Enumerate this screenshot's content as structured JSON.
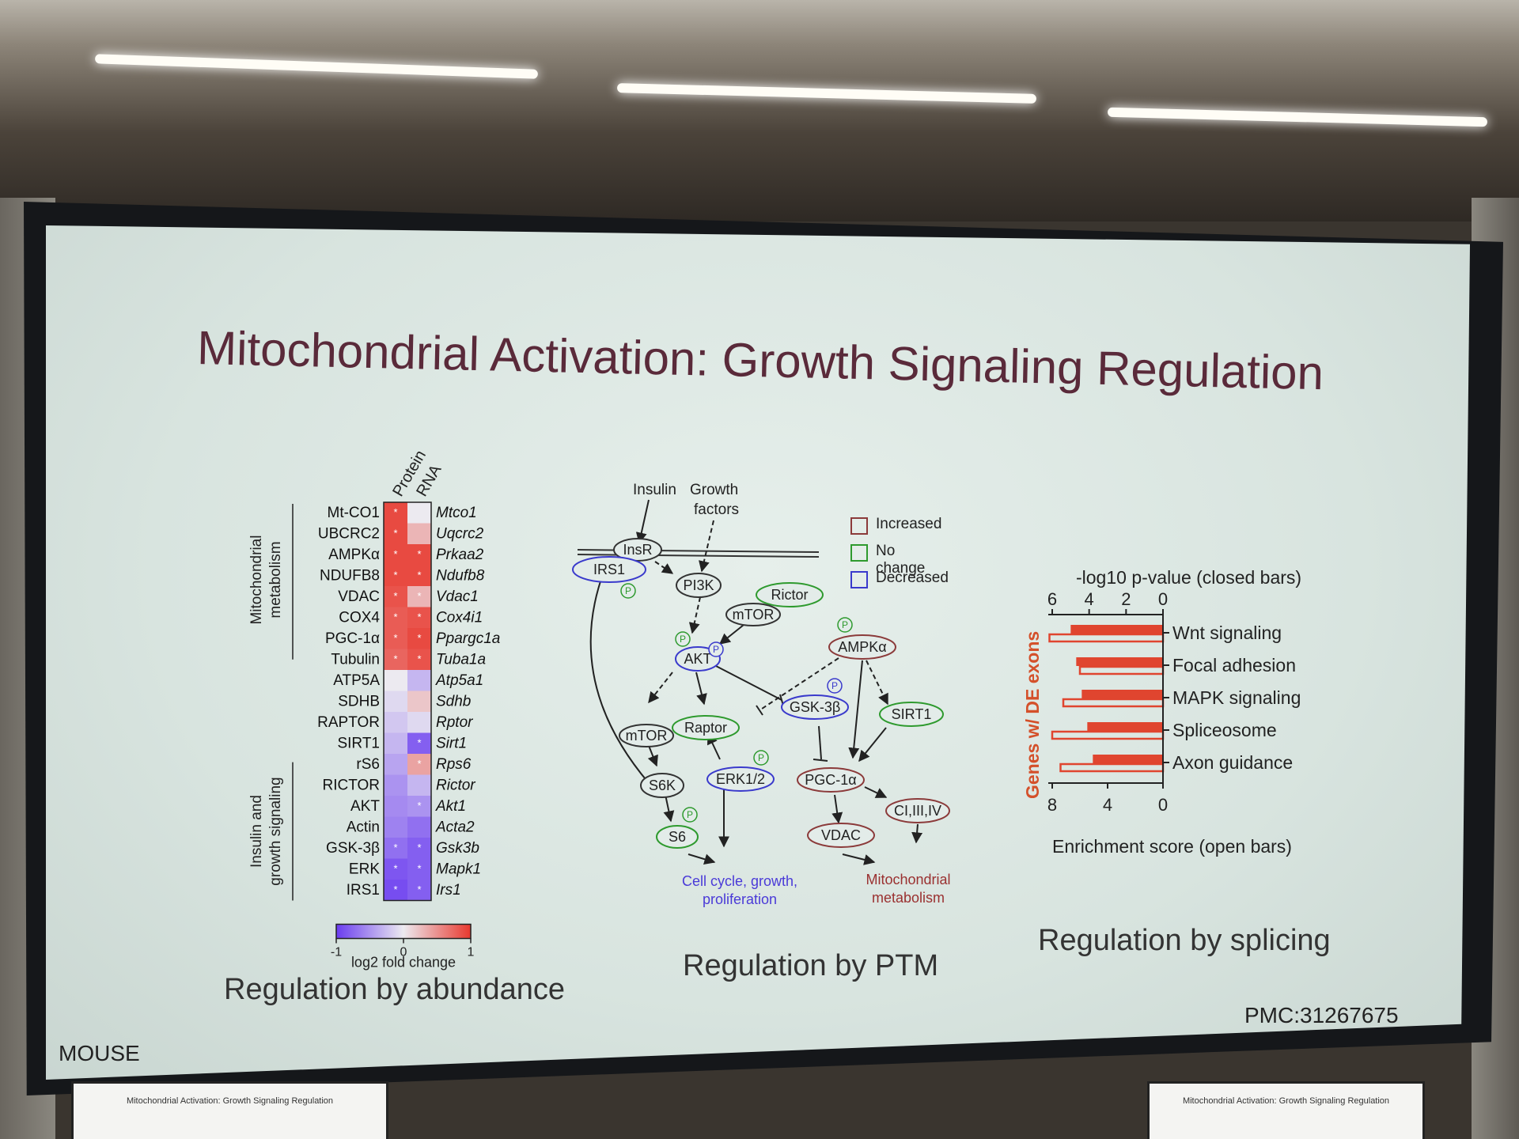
{
  "slide": {
    "title": "Mitochondrial Activation: Growth Signaling Regulation",
    "mouse_label": "MOUSE",
    "citation": "PMC:31267675",
    "panels": {
      "abundance": "Regulation by abundance",
      "ptm": "Regulation by PTM",
      "splicing": "Regulation by splicing"
    }
  },
  "heatmap": {
    "col_headers": [
      "Protein",
      "RNA"
    ],
    "group_labels": [
      "Mitochondrial\nmetabolism",
      "Insulin and\ngrowth signaling"
    ],
    "proteins": [
      "Mt-CO1",
      "UBCRC2",
      "AMPKα",
      "NDUFB8",
      "VDAC",
      "COX4",
      "PGC-1α",
      "Tubulin",
      "ATP5A",
      "SDHB",
      "RAPTOR",
      "SIRT1",
      "rS6",
      "RICTOR",
      "AKT",
      "Actin",
      "GSK-3β",
      "ERK",
      "IRS1"
    ],
    "genes": [
      "Mtco1",
      "Uqcrc2",
      "Prkaa2",
      "Ndufb8",
      "Vdac1",
      "Cox4i1",
      "Ppargc1a",
      "Tuba1a",
      "Atp5a1",
      "Sdhb",
      "Rptor",
      "Sirt1",
      "Rps6",
      "Rictor",
      "Akt1",
      "Acta2",
      "Gsk3b",
      "Mapk1",
      "Irs1"
    ],
    "protein_values": [
      0.9,
      0.9,
      0.9,
      0.9,
      0.85,
      0.8,
      0.8,
      0.75,
      0.0,
      -0.1,
      -0.2,
      -0.3,
      -0.4,
      -0.5,
      -0.55,
      -0.6,
      -0.7,
      -0.85,
      -0.9
    ],
    "rna_values": [
      0.0,
      0.3,
      0.9,
      0.9,
      0.3,
      0.85,
      0.9,
      0.85,
      -0.3,
      0.2,
      -0.1,
      -0.8,
      0.4,
      -0.3,
      -0.5,
      -0.7,
      -0.8,
      -0.8,
      -0.8
    ],
    "protein_stars": [
      true,
      true,
      true,
      true,
      true,
      true,
      true,
      true,
      false,
      false,
      false,
      false,
      false,
      false,
      false,
      false,
      true,
      true,
      true
    ],
    "rna_stars": [
      false,
      false,
      true,
      true,
      true,
      true,
      true,
      true,
      false,
      false,
      false,
      true,
      true,
      false,
      true,
      false,
      true,
      true,
      true
    ],
    "colorbar": {
      "min_label": "-1",
      "mid_label": "0",
      "max_label": "1",
      "label": "log2 fold change"
    },
    "colors": {
      "up": "#e8382e",
      "down": "#6a3cf0",
      "neutral": "#eceaf0"
    }
  },
  "ptm": {
    "inputs": [
      "Insulin",
      "Growth\nfactors"
    ],
    "legend": [
      {
        "label": "Increased",
        "color": "#8b3a3a"
      },
      {
        "label": "No change",
        "color": "#2e9a2e"
      },
      {
        "label": "Decreased",
        "color": "#3a3acc"
      }
    ],
    "nodes": {
      "insr": "InsR",
      "irs1": "IRS1",
      "pi3k": "PI3K",
      "rictor": "Rictor",
      "mtor1": "mTOR",
      "akt": "AKT",
      "ampk": "AMPKα",
      "gsk3b": "GSK-3β",
      "sirt1": "SIRT1",
      "mtor2": "mTOR",
      "raptor": "Raptor",
      "s6k": "S6K",
      "erk": "ERK1/2",
      "pgc": "PGC-1α",
      "ci": "CI,III,IV",
      "s6": "S6",
      "vdac": "VDAC"
    },
    "p_label": "P",
    "outputs": [
      "Cell cycle, growth,\nproliferation",
      "Mitochondrial\nmetabolism"
    ]
  },
  "chart_data": {
    "type": "bar",
    "categories": [
      "Wnt signaling",
      "Focal adhesion",
      "MAPK signaling",
      "Spliceosome",
      "Axon guidance"
    ],
    "series": [
      {
        "values": [
          5.0,
          4.7,
          4.4,
          4.1,
          3.8
        ]
      },
      {
        "values": [
          8.2,
          6.0,
          7.2,
          8.0,
          7.4
        ]
      }
    ],
    "xlabel_top": "-log10 p-value (closed bars)",
    "xlabel_bottom": "Enrichment score (open bars)",
    "ylabel": "Genes w/ DE exons",
    "top_ticks": [
      "6",
      "4",
      "2",
      "0"
    ],
    "bottom_ticks": [
      "8",
      "4",
      "0"
    ],
    "colors": {
      "bar": "#e0452f",
      "axis_label": "#d4502a"
    }
  }
}
